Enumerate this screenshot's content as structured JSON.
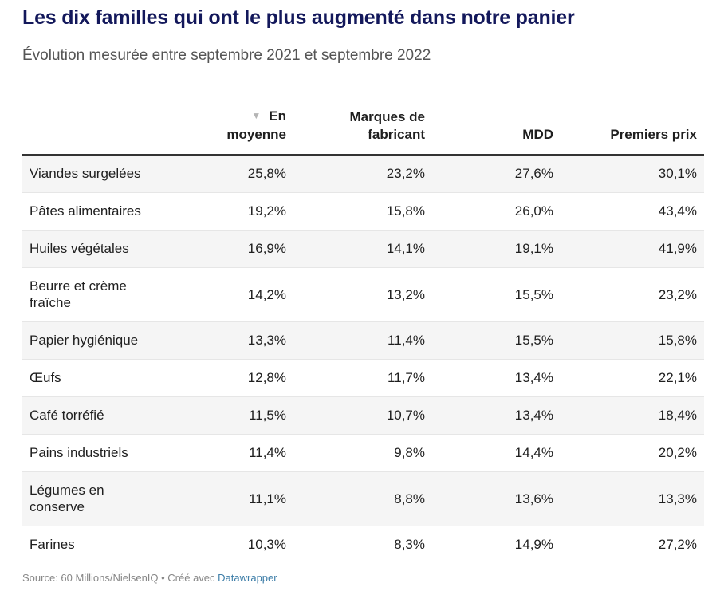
{
  "title": "Les dix familles qui ont le plus augmenté dans notre panier",
  "subtitle": "Évolution mesurée entre septembre 2021 et septembre 2022",
  "footer": {
    "source": "Source: 60 Millions/NielsenIQ • Créé avec ",
    "tool": "Datawrapper"
  },
  "chart_data": {
    "type": "table",
    "sort_indicator": "▼",
    "columns": [
      "",
      "En moyenne",
      "Marques de fabricant",
      "MDD",
      "Premiers prix"
    ],
    "rows": [
      {
        "label": "Viandes surgelées",
        "values": [
          "25,8%",
          "23,2%",
          "27,6%",
          "30,1%"
        ]
      },
      {
        "label": "Pâtes alimentaires",
        "values": [
          "19,2%",
          "15,8%",
          "26,0%",
          "43,4%"
        ]
      },
      {
        "label": "Huiles végétales",
        "values": [
          "16,9%",
          "14,1%",
          "19,1%",
          "41,9%"
        ]
      },
      {
        "label": "Beurre et crème fraîche",
        "values": [
          "14,2%",
          "13,2%",
          "15,5%",
          "23,2%"
        ]
      },
      {
        "label": "Papier hygiénique",
        "values": [
          "13,3%",
          "11,4%",
          "15,5%",
          "15,8%"
        ]
      },
      {
        "label": "Œufs",
        "values": [
          "12,8%",
          "11,7%",
          "13,4%",
          "22,1%"
        ]
      },
      {
        "label": "Café torréfié",
        "values": [
          "11,5%",
          "10,7%",
          "13,4%",
          "18,4%"
        ]
      },
      {
        "label": "Pains industriels",
        "values": [
          "11,4%",
          "9,8%",
          "14,4%",
          "20,2%"
        ]
      },
      {
        "label": "Légumes en conserve",
        "values": [
          "11,1%",
          "8,8%",
          "13,6%",
          "13,3%"
        ]
      },
      {
        "label": "Farines",
        "values": [
          "10,3%",
          "8,3%",
          "14,9%",
          "27,2%"
        ]
      }
    ]
  }
}
